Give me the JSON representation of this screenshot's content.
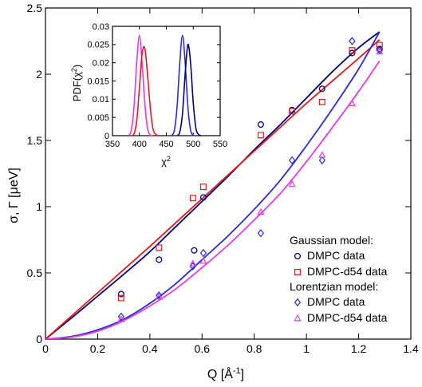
{
  "chart_data": [
    {
      "type": "scatter",
      "role": "main",
      "xlabel": "Q [Å",
      "xlabel_sup": "-1",
      "xlabel_close": "]",
      "ylabel": "σ, Γ [μeV]",
      "xlim": [
        0,
        1.4
      ],
      "ylim": [
        0,
        2.5
      ],
      "xticks": [
        0,
        0.2,
        0.4,
        0.6,
        0.8,
        1,
        1.2,
        1.4
      ],
      "xtick_labels": [
        "0",
        "0.2",
        "0.4",
        "0.6",
        "0.8",
        "1",
        "1.2",
        "1.4"
      ],
      "yticks": [
        0,
        0.5,
        1,
        1.5,
        2,
        2.5
      ],
      "ytick_labels": [
        "0",
        "0.5",
        "1",
        "1.5",
        "2",
        "2.5"
      ],
      "grid": false,
      "legend_position": "bottom-right",
      "legend": {
        "group1_title": "Gaussian model:",
        "group2_title": "Lorentzian model:"
      },
      "series": [
        {
          "name": "DMPC data",
          "group": "Gaussian model",
          "marker": "circle",
          "color": "#00007f",
          "x": [
            0.29,
            0.435,
            0.57,
            0.605,
            0.825,
            0.945,
            1.06,
            1.175,
            1.28
          ],
          "y": [
            0.34,
            0.6,
            0.67,
            1.07,
            1.62,
            1.73,
            1.89,
            2.16,
            2.19
          ]
        },
        {
          "name": "DMPC-d54 data",
          "group": "Gaussian model",
          "marker": "square",
          "color": "#e11b1b",
          "x": [
            0.29,
            0.435,
            0.565,
            0.605,
            0.825,
            0.945,
            1.06,
            1.175,
            1.28
          ],
          "y": [
            0.31,
            0.69,
            1.065,
            1.15,
            1.54,
            1.72,
            1.79,
            2.18,
            2.22
          ]
        },
        {
          "name": "DMPC data",
          "group": "Lorentzian model",
          "marker": "diamond",
          "color": "#2b2bd6",
          "x": [
            0.29,
            0.435,
            0.565,
            0.605,
            0.825,
            0.945,
            1.06,
            1.175,
            1.28
          ],
          "y": [
            0.17,
            0.33,
            0.55,
            0.65,
            0.8,
            1.35,
            1.35,
            2.25,
            2.18
          ]
        },
        {
          "name": "DMPC-d54 data",
          "group": "Lorentzian model",
          "marker": "triangle",
          "color": "#e43be4",
          "x": [
            0.29,
            0.435,
            0.565,
            0.605,
            0.825,
            0.945,
            1.06,
            1.175,
            1.28
          ],
          "y": [
            0.15,
            0.32,
            0.57,
            0.59,
            0.96,
            1.17,
            1.39,
            1.78,
            2.17
          ]
        }
      ],
      "fits": [
        {
          "color": "#00007f",
          "x": [
            0,
            0.1,
            0.2,
            0.3,
            0.4,
            0.5,
            0.6,
            0.7,
            0.8,
            0.9,
            1.0,
            1.1,
            1.2,
            1.28
          ],
          "y": [
            0,
            0.16,
            0.325,
            0.49,
            0.66,
            0.85,
            1.04,
            1.23,
            1.43,
            1.62,
            1.82,
            2.02,
            2.2,
            2.32
          ]
        },
        {
          "color": "#e11b1b",
          "x": [
            0,
            0.1,
            0.2,
            0.3,
            0.4,
            0.5,
            0.6,
            0.7,
            0.8,
            0.9,
            1.0,
            1.1,
            1.2,
            1.28
          ],
          "y": [
            0,
            0.175,
            0.35,
            0.525,
            0.7,
            0.88,
            1.06,
            1.24,
            1.42,
            1.6,
            1.78,
            1.95,
            2.12,
            2.26
          ]
        },
        {
          "color": "#2b2bd6",
          "x": [
            0,
            0.1,
            0.2,
            0.3,
            0.4,
            0.5,
            0.6,
            0.7,
            0.8,
            0.9,
            1.0,
            1.1,
            1.2,
            1.28
          ],
          "y": [
            0,
            0.02,
            0.07,
            0.15,
            0.27,
            0.42,
            0.6,
            0.78,
            0.98,
            1.2,
            1.46,
            1.74,
            2.04,
            2.32
          ]
        },
        {
          "color": "#e43be4",
          "x": [
            0,
            0.1,
            0.2,
            0.3,
            0.4,
            0.5,
            0.6,
            0.7,
            0.8,
            0.9,
            1.0,
            1.1,
            1.2,
            1.28
          ],
          "y": [
            0,
            0.015,
            0.06,
            0.14,
            0.25,
            0.38,
            0.54,
            0.71,
            0.9,
            1.1,
            1.34,
            1.6,
            1.87,
            2.1
          ]
        }
      ]
    },
    {
      "type": "line",
      "role": "inset",
      "xlabel": "χ",
      "xlabel_sup": "2",
      "ylabel": "PDF(χ",
      "ylabel_sup": "2",
      "ylabel_close": ")",
      "xlim": [
        350,
        550
      ],
      "ylim": [
        0,
        0.03
      ],
      "xticks": [
        350,
        400,
        450,
        500,
        550
      ],
      "xtick_labels": [
        "350",
        "400",
        "450",
        "500",
        "550"
      ],
      "yticks": [
        0,
        0.005,
        0.01,
        0.015,
        0.02,
        0.025,
        0.03
      ],
      "ytick_labels": [
        "0",
        "0.005",
        "0.01",
        "0.015",
        "0.02",
        "0.025",
        "0.03"
      ],
      "series": [
        {
          "color": "#e43be4",
          "x": [
            380,
            385,
            390,
            395,
            400,
            405,
            410,
            415,
            420,
            425
          ],
          "y": [
            0,
            0.0015,
            0.008,
            0.02,
            0.0275,
            0.02,
            0.009,
            0.002,
            0.0002,
            0
          ]
        },
        {
          "color": "#e11b1b",
          "x": [
            385,
            390,
            395,
            400,
            405,
            410,
            415,
            420,
            425,
            430,
            435
          ],
          "y": [
            0,
            0.0005,
            0.004,
            0.013,
            0.0225,
            0.024,
            0.017,
            0.008,
            0.002,
            0.0004,
            0
          ]
        },
        {
          "color": "#2b2bd6",
          "x": [
            460,
            465,
            470,
            475,
            480,
            485,
            490,
            495,
            500
          ],
          "y": [
            0,
            0.0015,
            0.008,
            0.02,
            0.0275,
            0.02,
            0.008,
            0.0015,
            0
          ]
        },
        {
          "color": "#00007f",
          "x": [
            470,
            475,
            480,
            485,
            490,
            495,
            500,
            505,
            510,
            515
          ],
          "y": [
            0,
            0.001,
            0.006,
            0.017,
            0.025,
            0.02,
            0.009,
            0.002,
            0.0003,
            0
          ]
        }
      ]
    }
  ]
}
